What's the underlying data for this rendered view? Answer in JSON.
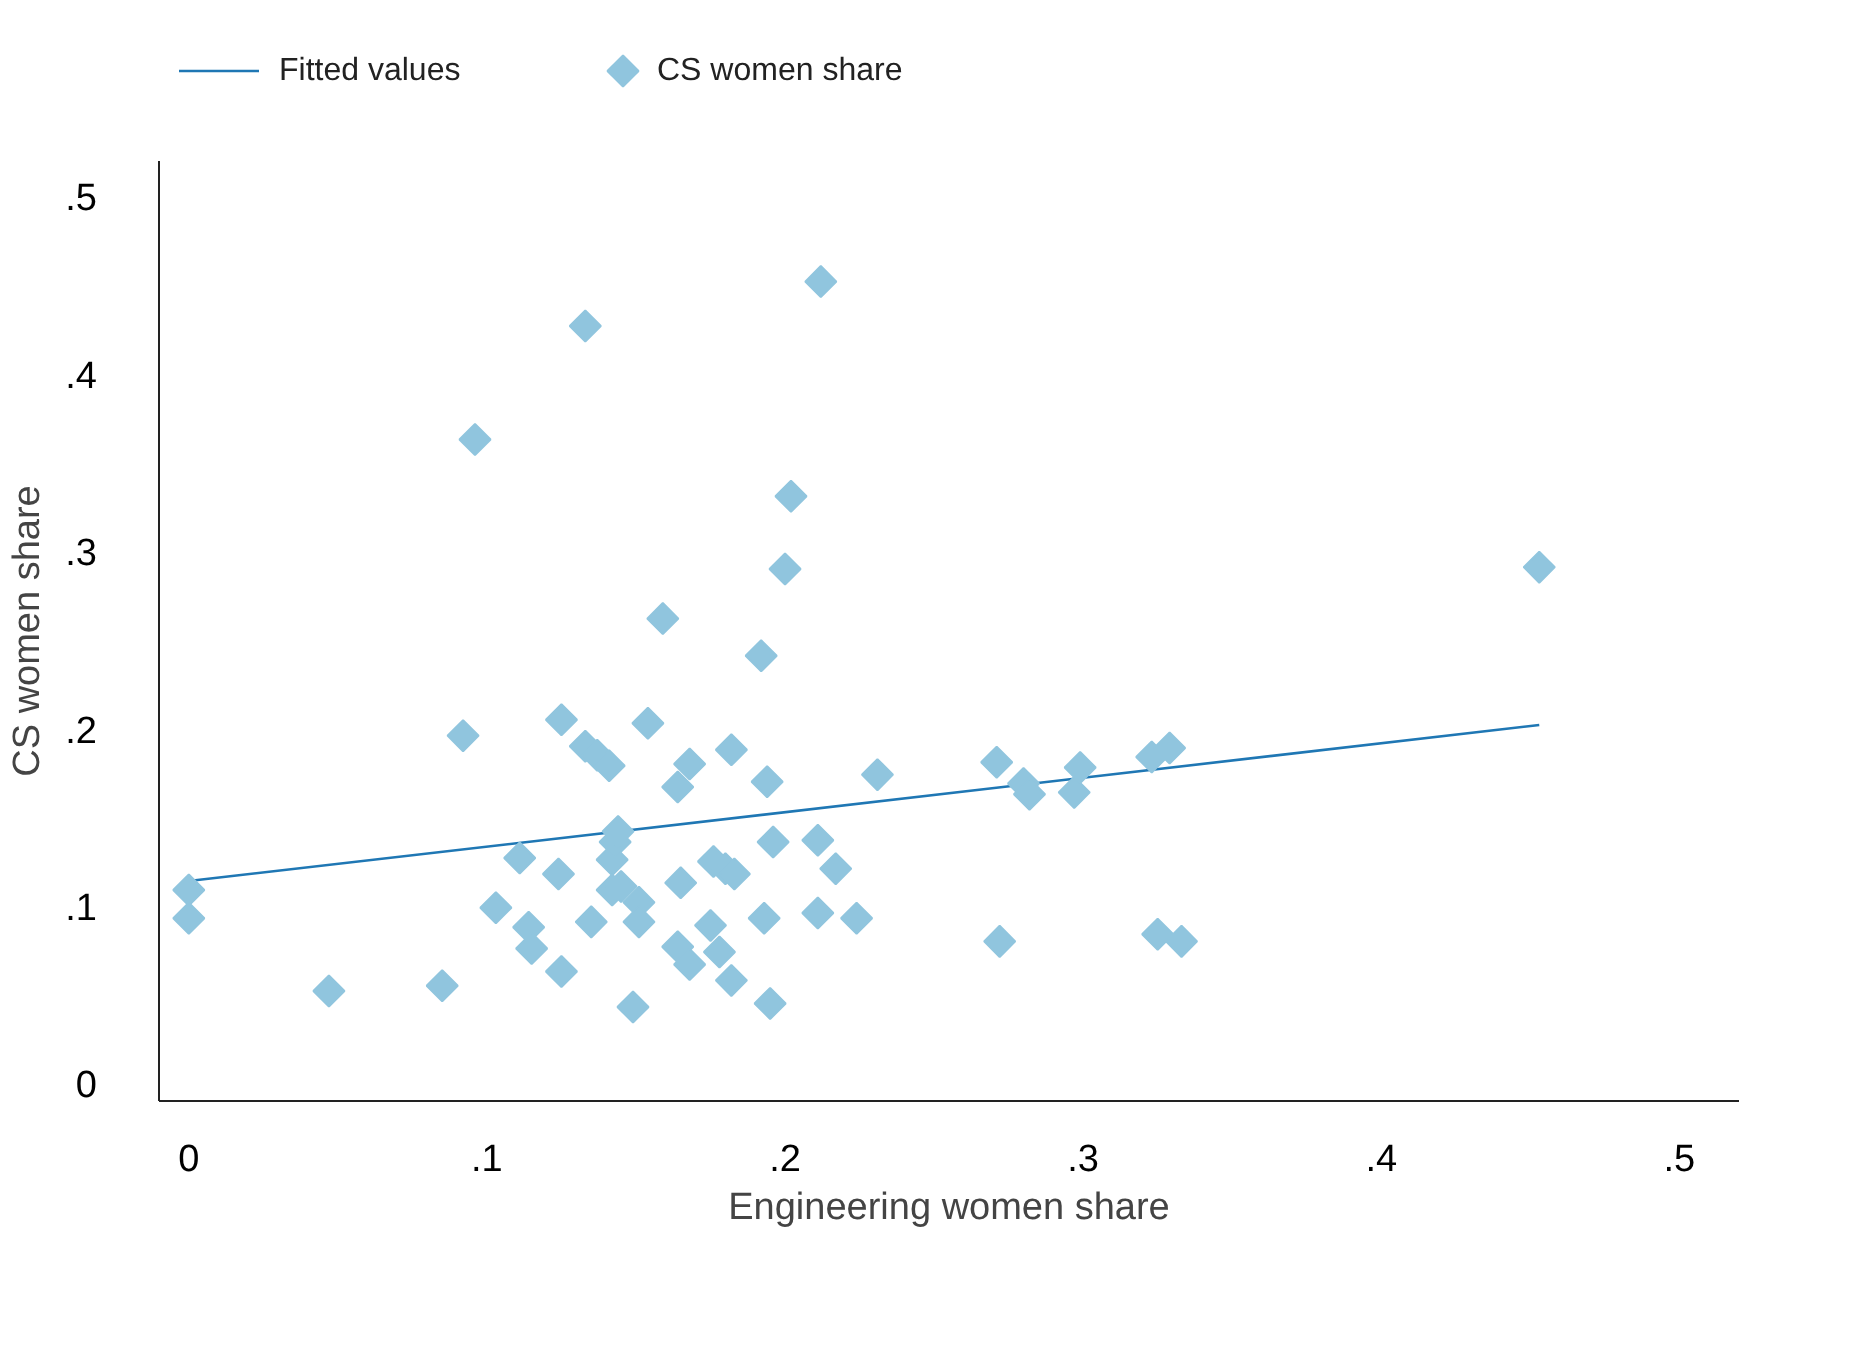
{
  "chart_data": {
    "type": "scatter",
    "xlabel": "Engineering women share",
    "ylabel": "CS women share",
    "xlim": [
      -0.01,
      0.52
    ],
    "ylim": [
      -0.01,
      0.52
    ],
    "xticks": [
      {
        "value": 0,
        "label": "0"
      },
      {
        "value": 0.1,
        "label": ".1"
      },
      {
        "value": 0.2,
        "label": ".2"
      },
      {
        "value": 0.3,
        "label": ".3"
      },
      {
        "value": 0.4,
        "label": ".4"
      },
      {
        "value": 0.5,
        "label": ".5"
      }
    ],
    "yticks": [
      {
        "value": 0,
        "label": "0"
      },
      {
        "value": 0.1,
        "label": ".1"
      },
      {
        "value": 0.2,
        "label": ".2"
      },
      {
        "value": 0.3,
        "label": ".3"
      },
      {
        "value": 0.4,
        "label": ".4"
      },
      {
        "value": 0.5,
        "label": ".5"
      }
    ],
    "grid": false,
    "legend": "top left",
    "series": [
      {
        "name": "Fitted values",
        "type": "line",
        "color": "#1f77b4",
        "line_style": "solid",
        "x": [
          0,
          0.453
        ],
        "values": [
          0.114,
          0.202
        ]
      },
      {
        "name": "CS women share",
        "marker": "diamond",
        "color": "#90c5de",
        "x": [
          0,
          0,
          0.047,
          0.085,
          0.096,
          0.092,
          0.103,
          0.111,
          0.114,
          0.115,
          0.125,
          0.124,
          0.125,
          0.133,
          0.133,
          0.137,
          0.141,
          0.135,
          0.142,
          0.143,
          0.144,
          0.142,
          0.145,
          0.149,
          0.151,
          0.151,
          0.154,
          0.159,
          0.164,
          0.165,
          0.164,
          0.168,
          0.168,
          0.175,
          0.176,
          0.178,
          0.18,
          0.182,
          0.183,
          0.182,
          0.192,
          0.193,
          0.194,
          0.195,
          0.196,
          0.2,
          0.202,
          0.211,
          0.211,
          0.212,
          0.217,
          0.224,
          0.231,
          0.271,
          0.272,
          0.28,
          0.282,
          0.297,
          0.299,
          0.323,
          0.329,
          0.325,
          0.333,
          0.453
        ],
        "values": [
          0.109,
          0.093,
          0.052,
          0.055,
          0.363,
          0.196,
          0.099,
          0.127,
          0.088,
          0.076,
          0.063,
          0.118,
          0.205,
          0.427,
          0.19,
          0.185,
          0.179,
          0.091,
          0.126,
          0.136,
          0.142,
          0.109,
          0.111,
          0.043,
          0.102,
          0.091,
          0.203,
          0.262,
          0.167,
          0.113,
          0.077,
          0.18,
          0.067,
          0.089,
          0.125,
          0.074,
          0.121,
          0.188,
          0.118,
          0.058,
          0.241,
          0.093,
          0.17,
          0.045,
          0.136,
          0.29,
          0.331,
          0.137,
          0.096,
          0.452,
          0.121,
          0.093,
          0.174,
          0.181,
          0.08,
          0.169,
          0.163,
          0.164,
          0.178,
          0.184,
          0.189,
          0.084,
          0.08,
          0.291
        ]
      }
    ]
  }
}
